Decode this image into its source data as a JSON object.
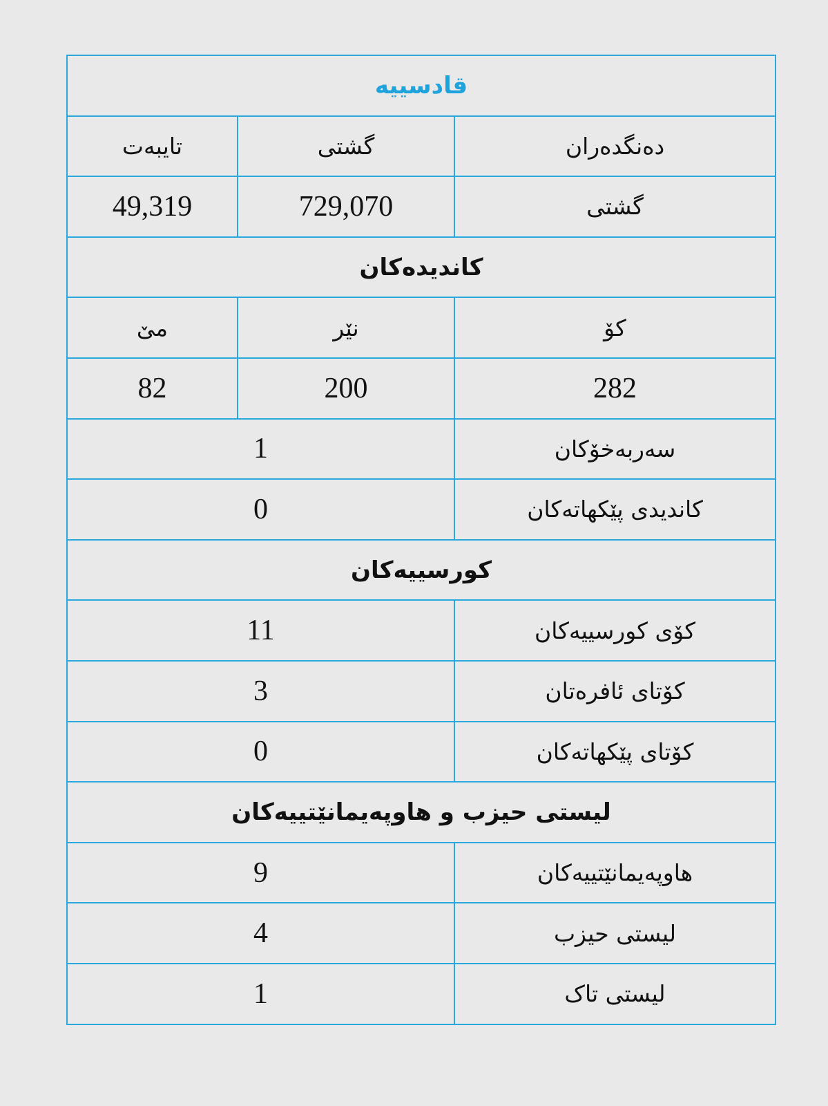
{
  "title": "قادسییە",
  "accent_color": "#2aa7dd",
  "voters": {
    "headers": [
      "دەنگدەران",
      "گشتی",
      "تایبەت"
    ],
    "row_label": "گشتی",
    "total": "729,070",
    "special": "49,319"
  },
  "candidates": {
    "section": "کاندیدەکان",
    "headers": [
      "کۆ",
      "نێر",
      "مێ"
    ],
    "total": "282",
    "male": "200",
    "female": "82",
    "rows": [
      {
        "label": "سەربەخۆکان",
        "value": "1"
      },
      {
        "label": "کاندیدی پێکهاتەکان",
        "value": "0"
      }
    ]
  },
  "seats": {
    "section": "کورسییەکان",
    "rows": [
      {
        "label": "کۆی کورسییەکان",
        "value": "11"
      },
      {
        "label": "کۆتای ئافرەتان",
        "value": "3"
      },
      {
        "label": "کۆتای پێکهاتەکان",
        "value": "0"
      }
    ]
  },
  "lists": {
    "section": "لیستی حیزب و هاوپەیمانێتییەکان",
    "rows": [
      {
        "label": "هاوپەیمانێتییەکان",
        "value": "9"
      },
      {
        "label": "لیستی حیزب",
        "value": "4"
      },
      {
        "label": "لیستی تاک",
        "value": "1"
      }
    ]
  }
}
